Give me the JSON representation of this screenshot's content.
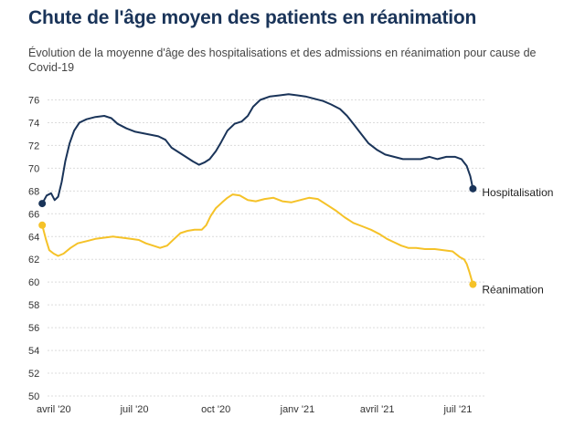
{
  "chart_data": {
    "type": "line",
    "title": "Chute de l'âge moyen des patients en réanimation",
    "subtitle": "Évolution de la moyenne d'âge des hospitalisations et des admissions en réanimation pour cause de Covid-19",
    "xlabel": "",
    "ylabel": "",
    "ylim": [
      50,
      77
    ],
    "yticks": [
      76,
      74,
      72,
      70,
      68,
      66,
      64,
      62,
      60,
      58,
      56,
      54,
      52,
      50
    ],
    "grid": true,
    "xticks": [
      {
        "date": "2020-04-01",
        "label": "avril '20"
      },
      {
        "date": "2020-07-01",
        "label": "juil '20"
      },
      {
        "date": "2020-10-01",
        "label": "oct '20"
      },
      {
        "date": "2021-01-01",
        "label": "janv '21"
      },
      {
        "date": "2021-04-01",
        "label": "avril '21"
      },
      {
        "date": "2021-07-01",
        "label": "juil '21"
      }
    ],
    "xlim": [
      "2020-03-25",
      "2021-07-31"
    ],
    "series": [
      {
        "name": "Hospitalisation",
        "color": "#1a3459",
        "points": [
          [
            "2020-03-19",
            66.9
          ],
          [
            "2020-03-24",
            67.6
          ],
          [
            "2020-03-29",
            67.8
          ],
          [
            "2020-04-02",
            67.2
          ],
          [
            "2020-04-06",
            67.5
          ],
          [
            "2020-04-10",
            68.8
          ],
          [
            "2020-04-14",
            70.6
          ],
          [
            "2020-04-19",
            72.2
          ],
          [
            "2020-04-24",
            73.3
          ],
          [
            "2020-04-30",
            74.0
          ],
          [
            "2020-05-08",
            74.3
          ],
          [
            "2020-05-18",
            74.5
          ],
          [
            "2020-05-28",
            74.6
          ],
          [
            "2020-06-05",
            74.4
          ],
          [
            "2020-06-12",
            73.9
          ],
          [
            "2020-06-22",
            73.5
          ],
          [
            "2020-07-02",
            73.2
          ],
          [
            "2020-07-15",
            73.0
          ],
          [
            "2020-07-28",
            72.8
          ],
          [
            "2020-08-05",
            72.5
          ],
          [
            "2020-08-12",
            71.8
          ],
          [
            "2020-08-20",
            71.4
          ],
          [
            "2020-08-28",
            71.0
          ],
          [
            "2020-09-05",
            70.6
          ],
          [
            "2020-09-12",
            70.3
          ],
          [
            "2020-09-18",
            70.5
          ],
          [
            "2020-09-24",
            70.8
          ],
          [
            "2020-10-01",
            71.5
          ],
          [
            "2020-10-07",
            72.3
          ],
          [
            "2020-10-14",
            73.3
          ],
          [
            "2020-10-22",
            73.9
          ],
          [
            "2020-10-30",
            74.1
          ],
          [
            "2020-11-06",
            74.6
          ],
          [
            "2020-11-12",
            75.4
          ],
          [
            "2020-11-20",
            76.0
          ],
          [
            "2020-12-01",
            76.3
          ],
          [
            "2020-12-12",
            76.4
          ],
          [
            "2020-12-22",
            76.5
          ],
          [
            "2021-01-01",
            76.4
          ],
          [
            "2021-01-10",
            76.3
          ],
          [
            "2021-01-20",
            76.1
          ],
          [
            "2021-01-30",
            75.9
          ],
          [
            "2021-02-08",
            75.6
          ],
          [
            "2021-02-18",
            75.2
          ],
          [
            "2021-02-26",
            74.6
          ],
          [
            "2021-03-06",
            73.8
          ],
          [
            "2021-03-14",
            73.0
          ],
          [
            "2021-03-22",
            72.2
          ],
          [
            "2021-04-01",
            71.6
          ],
          [
            "2021-04-10",
            71.2
          ],
          [
            "2021-04-20",
            71.0
          ],
          [
            "2021-04-30",
            70.8
          ],
          [
            "2021-05-10",
            70.8
          ],
          [
            "2021-05-20",
            70.8
          ],
          [
            "2021-05-30",
            71.0
          ],
          [
            "2021-06-08",
            70.8
          ],
          [
            "2021-06-18",
            71.0
          ],
          [
            "2021-06-28",
            71.0
          ],
          [
            "2021-07-05",
            70.8
          ],
          [
            "2021-07-11",
            70.2
          ],
          [
            "2021-07-15",
            69.3
          ],
          [
            "2021-07-18",
            68.2
          ]
        ]
      },
      {
        "name": "Réanimation",
        "color": "#f5c228",
        "points": [
          [
            "2020-03-19",
            65.0
          ],
          [
            "2020-03-23",
            63.8
          ],
          [
            "2020-03-27",
            62.8
          ],
          [
            "2020-04-01",
            62.5
          ],
          [
            "2020-04-06",
            62.3
          ],
          [
            "2020-04-12",
            62.5
          ],
          [
            "2020-04-20",
            63.0
          ],
          [
            "2020-04-28",
            63.4
          ],
          [
            "2020-05-08",
            63.6
          ],
          [
            "2020-05-18",
            63.8
          ],
          [
            "2020-05-28",
            63.9
          ],
          [
            "2020-06-07",
            64.0
          ],
          [
            "2020-06-17",
            63.9
          ],
          [
            "2020-06-27",
            63.8
          ],
          [
            "2020-07-06",
            63.7
          ],
          [
            "2020-07-14",
            63.4
          ],
          [
            "2020-07-22",
            63.2
          ],
          [
            "2020-07-30",
            63.0
          ],
          [
            "2020-08-07",
            63.2
          ],
          [
            "2020-08-15",
            63.8
          ],
          [
            "2020-08-22",
            64.3
          ],
          [
            "2020-08-30",
            64.5
          ],
          [
            "2020-09-07",
            64.6
          ],
          [
            "2020-09-15",
            64.6
          ],
          [
            "2020-09-20",
            65.0
          ],
          [
            "2020-09-25",
            65.8
          ],
          [
            "2020-10-01",
            66.5
          ],
          [
            "2020-10-08",
            67.0
          ],
          [
            "2020-10-14",
            67.4
          ],
          [
            "2020-10-20",
            67.7
          ],
          [
            "2020-10-28",
            67.6
          ],
          [
            "2020-11-06",
            67.2
          ],
          [
            "2020-11-15",
            67.1
          ],
          [
            "2020-11-25",
            67.3
          ],
          [
            "2020-12-05",
            67.4
          ],
          [
            "2020-12-15",
            67.1
          ],
          [
            "2020-12-25",
            67.0
          ],
          [
            "2021-01-04",
            67.2
          ],
          [
            "2021-01-14",
            67.4
          ],
          [
            "2021-01-24",
            67.3
          ],
          [
            "2021-02-03",
            66.8
          ],
          [
            "2021-02-13",
            66.3
          ],
          [
            "2021-02-23",
            65.7
          ],
          [
            "2021-03-05",
            65.2
          ],
          [
            "2021-03-15",
            64.9
          ],
          [
            "2021-03-25",
            64.6
          ],
          [
            "2021-04-04",
            64.2
          ],
          [
            "2021-04-12",
            63.8
          ],
          [
            "2021-04-20",
            63.5
          ],
          [
            "2021-04-28",
            63.2
          ],
          [
            "2021-05-06",
            63.0
          ],
          [
            "2021-05-15",
            63.0
          ],
          [
            "2021-05-25",
            62.9
          ],
          [
            "2021-06-05",
            62.9
          ],
          [
            "2021-06-15",
            62.8
          ],
          [
            "2021-06-25",
            62.7
          ],
          [
            "2021-07-03",
            62.2
          ],
          [
            "2021-07-08",
            62.0
          ],
          [
            "2021-07-11",
            61.6
          ],
          [
            "2021-07-14",
            60.9
          ],
          [
            "2021-07-18",
            59.8
          ]
        ]
      }
    ]
  }
}
